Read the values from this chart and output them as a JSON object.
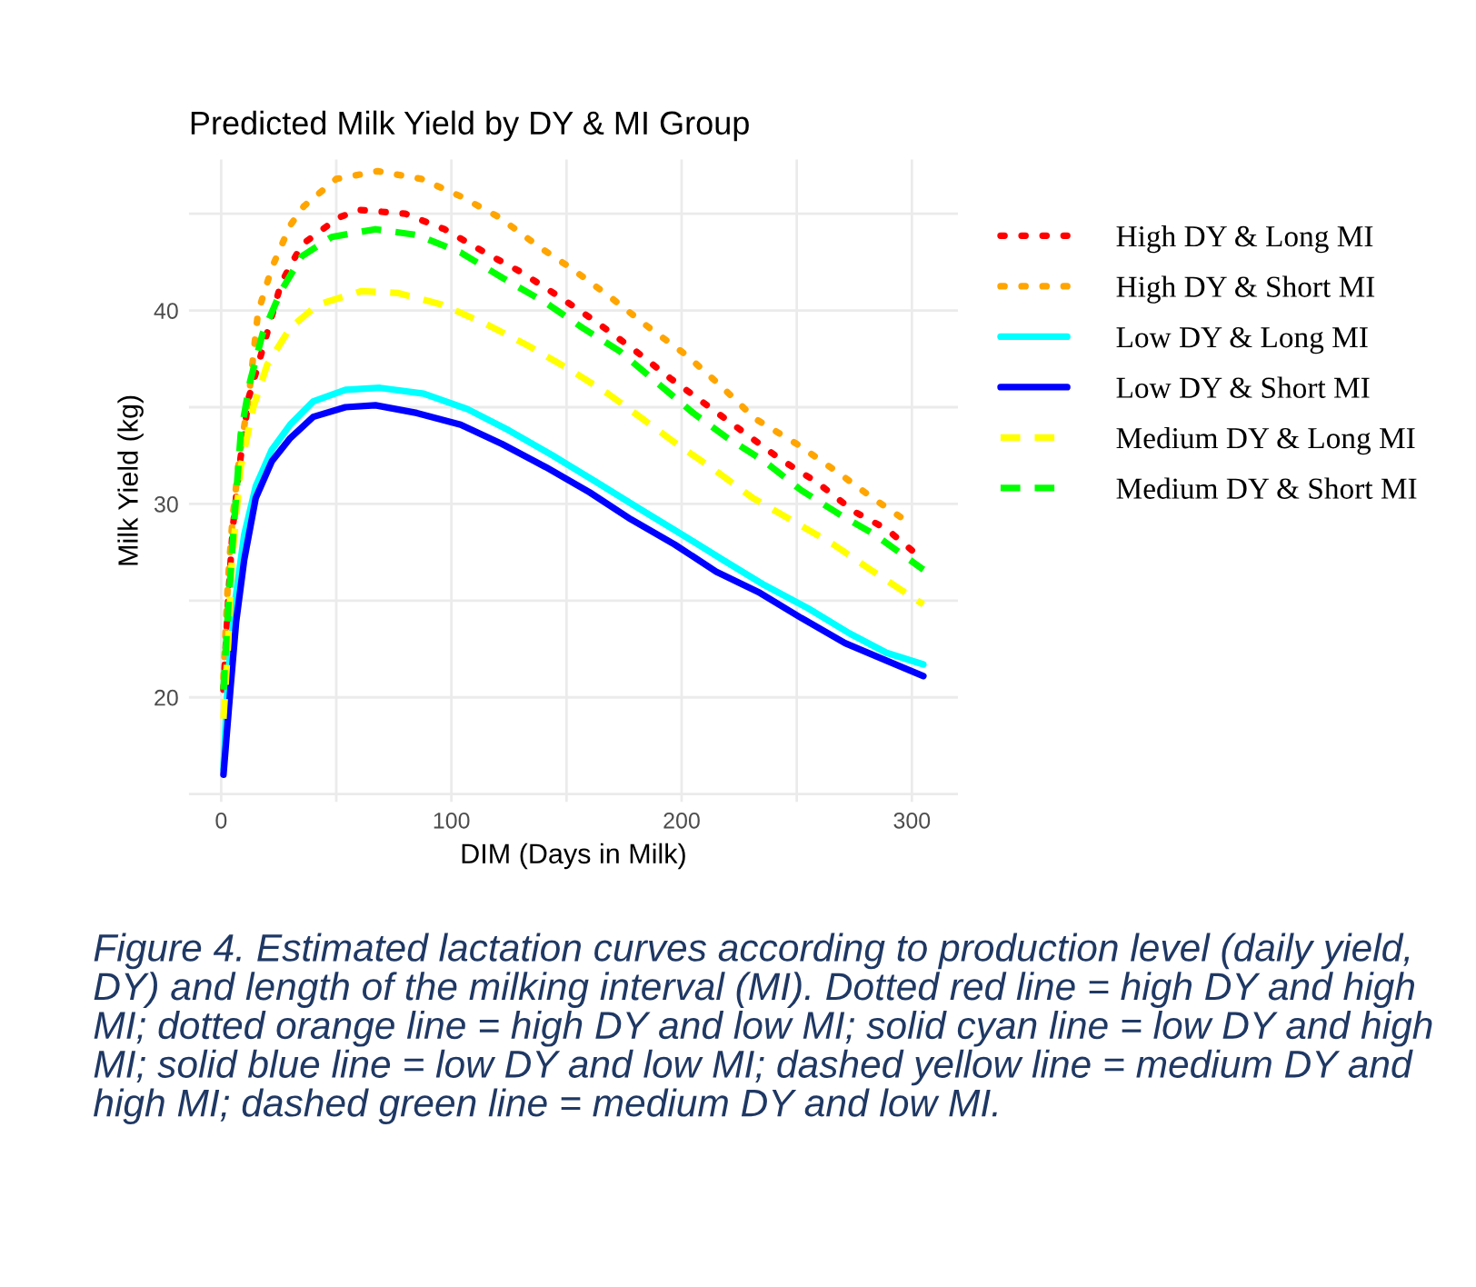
{
  "chart_data": {
    "type": "line",
    "title": "Predicted Milk Yield by DY & MI Group",
    "xlabel": "DIM (Days in Milk)",
    "ylabel": "Milk Yield (kg)",
    "xlim": [
      -14,
      320
    ],
    "ylim": [
      14.6,
      47.8
    ],
    "xticks": [
      0,
      {
        "value": 50,
        "label": null
      },
      100,
      {
        "value": 150,
        "label": null
      },
      200,
      {
        "value": 250,
        "label": null
      },
      300
    ],
    "yticks": [
      {
        "value": 15,
        "label": null
      },
      20,
      {
        "value": 25,
        "label": null
      },
      30,
      {
        "value": 35,
        "label": null
      },
      40,
      {
        "value": 45,
        "label": null
      }
    ],
    "grid": true,
    "legend": "right",
    "series": [
      {
        "name": "High DY & Long MI",
        "color": "#ff0000",
        "line_style": "dotted",
        "x": [
          1,
          3,
          5,
          8,
          12,
          18,
          26,
          35,
          51,
          60,
          80,
          97,
          116,
          130,
          147,
          163,
          179,
          195,
          211,
          227,
          243,
          259,
          275,
          289,
          300
        ],
        "values": [
          20.4,
          24.9,
          28.7,
          32.0,
          35.5,
          38.0,
          41.4,
          43.4,
          44.8,
          45.2,
          45.0,
          44.2,
          42.9,
          42.0,
          40.7,
          39.4,
          38.0,
          36.5,
          35.1,
          33.7,
          32.3,
          31.1,
          29.6,
          28.7,
          27.6
        ]
      },
      {
        "name": "High DY & Short MI",
        "color": "#ffa500",
        "line_style": "dotted",
        "x": [
          1,
          3,
          5,
          8,
          12,
          16,
          22,
          30,
          36,
          50,
          68,
          87,
          104,
          121,
          138,
          153,
          170,
          186,
          202,
          217,
          232,
          250,
          267,
          283,
          299
        ],
        "values": [
          21.0,
          26.1,
          29.3,
          32.5,
          35.5,
          39.9,
          42.2,
          44.4,
          45.4,
          46.8,
          47.2,
          46.8,
          45.9,
          44.8,
          43.3,
          42.1,
          40.6,
          39.1,
          37.7,
          36.1,
          34.4,
          33.1,
          31.7,
          30.3,
          29.0
        ]
      },
      {
        "name": "Low DY & Long MI",
        "color": "#00ffff",
        "line_style": "solid",
        "x": [
          1,
          3,
          6,
          10,
          15,
          22,
          30,
          40,
          54,
          69,
          88,
          107,
          125,
          144,
          162,
          181,
          199,
          218,
          236,
          255,
          273,
          289,
          305
        ],
        "values": [
          16.3,
          21.1,
          24.9,
          28.4,
          30.9,
          32.8,
          34.1,
          35.3,
          35.9,
          36.0,
          35.7,
          34.9,
          33.8,
          32.5,
          31.2,
          29.8,
          28.5,
          27.1,
          25.8,
          24.6,
          23.3,
          22.3,
          21.7
        ]
      },
      {
        "name": "Low DY & Short MI",
        "color": "#0000ff",
        "line_style": "solid",
        "x": [
          1,
          4,
          6.5,
          10,
          15,
          22,
          30,
          40,
          54,
          67,
          85,
          104,
          122,
          141,
          160,
          178,
          197,
          215,
          234,
          252,
          271,
          289,
          305
        ],
        "values": [
          16.0,
          20.4,
          23.9,
          27.1,
          30.3,
          32.2,
          33.4,
          34.5,
          35.0,
          35.1,
          34.7,
          34.1,
          33.1,
          31.9,
          30.6,
          29.2,
          27.9,
          26.5,
          25.4,
          24.1,
          22.8,
          21.9,
          21.1
        ]
      },
      {
        "name": "Medium DY & Long MI",
        "color": "#ffff00",
        "line_style": "dashed",
        "x": [
          1,
          3,
          4.5,
          8.5,
          14,
          20,
          30,
          42,
          61,
          77,
          96,
          115,
          133,
          152,
          168,
          183,
          199,
          215,
          231,
          250,
          266,
          282,
          305
        ],
        "values": [
          18.9,
          22.7,
          26.8,
          31.9,
          35.0,
          37.2,
          39.1,
          40.3,
          41.0,
          40.9,
          40.3,
          39.3,
          38.2,
          36.9,
          35.7,
          34.4,
          33.0,
          31.7,
          30.3,
          29.0,
          27.9,
          26.6,
          24.8
        ]
      },
      {
        "name": "Medium DY & Short MI",
        "color": "#00ff00",
        "line_style": "dashed",
        "x": [
          1,
          3,
          5,
          8.5,
          12.5,
          18,
          26,
          35,
          48,
          67,
          85,
          104,
          122,
          141,
          157,
          173,
          189,
          205,
          220,
          236,
          252,
          268,
          284,
          305
        ],
        "values": [
          20.4,
          24.5,
          28.0,
          33.6,
          36.3,
          38.8,
          41.0,
          42.8,
          43.8,
          44.2,
          43.9,
          43.0,
          41.7,
          40.4,
          39.1,
          37.9,
          36.3,
          34.7,
          33.4,
          32.2,
          30.7,
          29.5,
          28.4,
          26.6
        ]
      }
    ],
    "annotations": [
      "Figure 4. Estimated lactation curves according to production level (daily yield, DY) and length of the milking interval (MI). Dotted red line = high DY and high MI; dotted orange line = high DY and low MI; solid cyan line = low DY and high MI; solid blue line = low DY and low MI; dashed yellow line = medium DY and high MI; dashed green line = medium DY and low MI."
    ]
  }
}
